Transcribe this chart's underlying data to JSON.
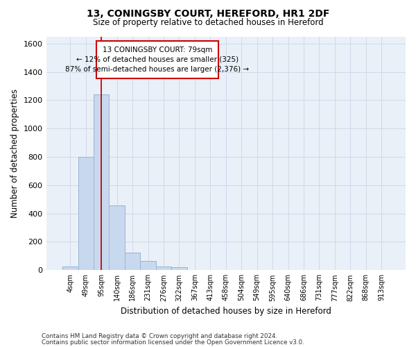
{
  "title_line1": "13, CONINGSBY COURT, HEREFORD, HR1 2DF",
  "title_line2": "Size of property relative to detached houses in Hereford",
  "xlabel": "Distribution of detached houses by size in Hereford",
  "ylabel": "Number of detached properties",
  "bar_color": "#c8d8ee",
  "bar_edge_color": "#9ab4d4",
  "categories": [
    "4sqm",
    "49sqm",
    "95sqm",
    "140sqm",
    "186sqm",
    "231sqm",
    "276sqm",
    "322sqm",
    "367sqm",
    "413sqm",
    "458sqm",
    "504sqm",
    "549sqm",
    "595sqm",
    "640sqm",
    "686sqm",
    "731sqm",
    "777sqm",
    "822sqm",
    "868sqm",
    "913sqm"
  ],
  "values": [
    25,
    800,
    1240,
    455,
    125,
    63,
    25,
    20,
    0,
    0,
    0,
    0,
    0,
    0,
    0,
    0,
    0,
    0,
    0,
    0,
    0
  ],
  "ylim": [
    0,
    1650
  ],
  "yticks": [
    0,
    200,
    400,
    600,
    800,
    1000,
    1200,
    1400,
    1600
  ],
  "property_line_x": 2,
  "annotation_text": "13 CONINGSBY COURT: 79sqm\n← 12% of detached houses are smaller (325)\n87% of semi-detached houses are larger (2,376) →",
  "annotation_box_color": "#ffffff",
  "annotation_box_edge_color": "#cc0000",
  "annotation_text_color": "#000000",
  "property_line_color": "#cc0000",
  "grid_color": "#d0d8ea",
  "background_color": "#eaf0f8",
  "footnote1": "Contains HM Land Registry data © Crown copyright and database right 2024.",
  "footnote2": "Contains public sector information licensed under the Open Government Licence v3.0."
}
